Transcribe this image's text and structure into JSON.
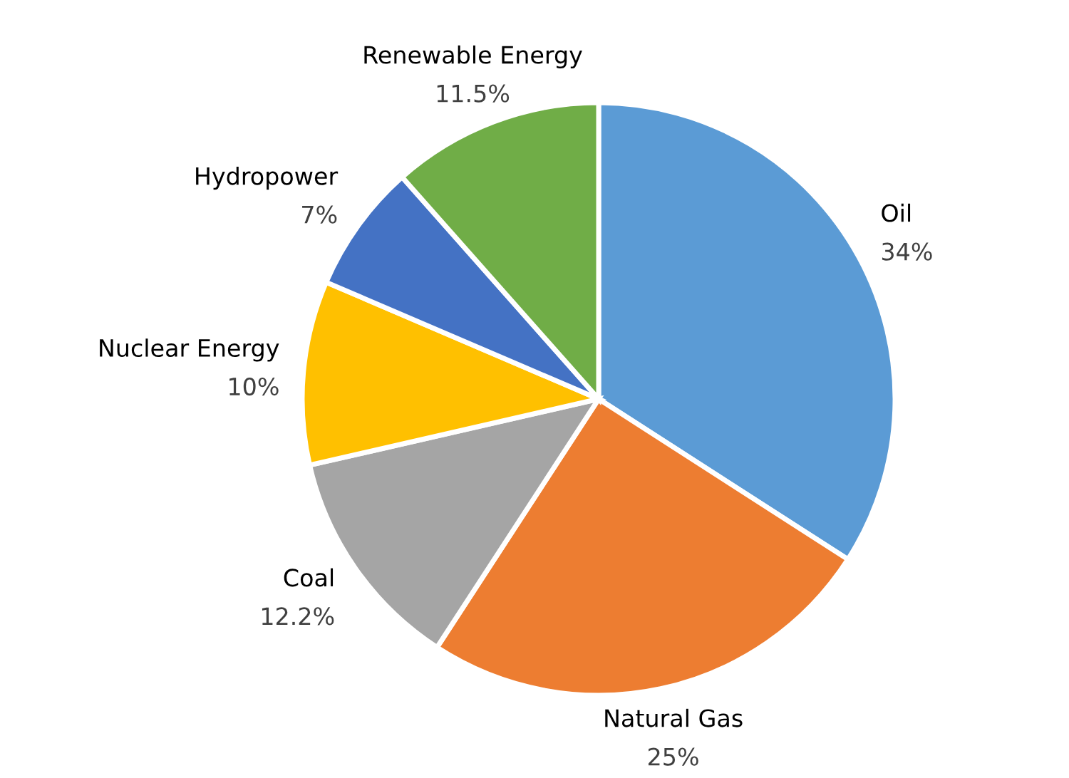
{
  "chart_data": {
    "type": "pie",
    "categories": [
      "Oil",
      "Natural Gas",
      "Coal",
      "Nuclear Energy",
      "Hydropower",
      "Renewable Energy"
    ],
    "values": [
      34,
      25,
      12.2,
      10,
      7,
      11.5
    ],
    "value_labels": [
      "34%",
      "25%",
      "12.2%",
      "10%",
      "7%",
      "11.5%"
    ],
    "colors": [
      "#5b9bd5",
      "#ed7d31",
      "#a5a5a5",
      "#ffc000",
      "#4472c4",
      "#70ad47"
    ],
    "legend": false
  }
}
